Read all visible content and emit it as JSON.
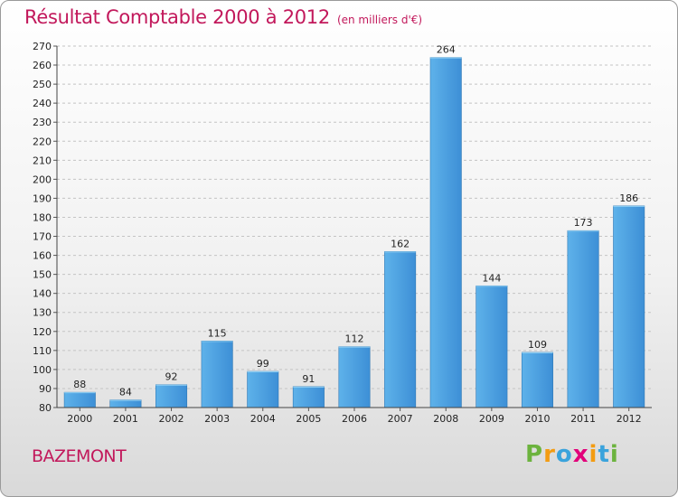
{
  "chart_data": {
    "type": "bar",
    "title": "Résultat Comptable 2000 à 2012",
    "subtitle": "(en milliers d'€)",
    "categories": [
      "2000",
      "2001",
      "2002",
      "2003",
      "2004",
      "2005",
      "2006",
      "2007",
      "2008",
      "2009",
      "2010",
      "2011",
      "2012"
    ],
    "values": [
      88,
      84,
      92,
      115,
      99,
      91,
      112,
      162,
      264,
      144,
      109,
      173,
      186
    ],
    "ylim": [
      80,
      270
    ],
    "yticks": [
      80,
      90,
      100,
      110,
      120,
      130,
      140,
      150,
      160,
      170,
      180,
      190,
      200,
      210,
      220,
      230,
      240,
      250,
      260,
      270
    ],
    "grid": true,
    "xlabel": "",
    "ylabel": "",
    "bar_color": "#3d8fd6",
    "bar_color_light": "#5eb2ea"
  },
  "footer": {
    "commune": "BAZEMONT",
    "logo": {
      "text": "Proxiti",
      "letters": [
        "P",
        "r",
        "o",
        "x",
        "i",
        "t",
        "i"
      ],
      "colors": [
        "#6cb33e",
        "#f39c12",
        "#3aa3dc",
        "#e2007a",
        "#f39c12",
        "#3aa3dc",
        "#6cb33e"
      ]
    }
  }
}
